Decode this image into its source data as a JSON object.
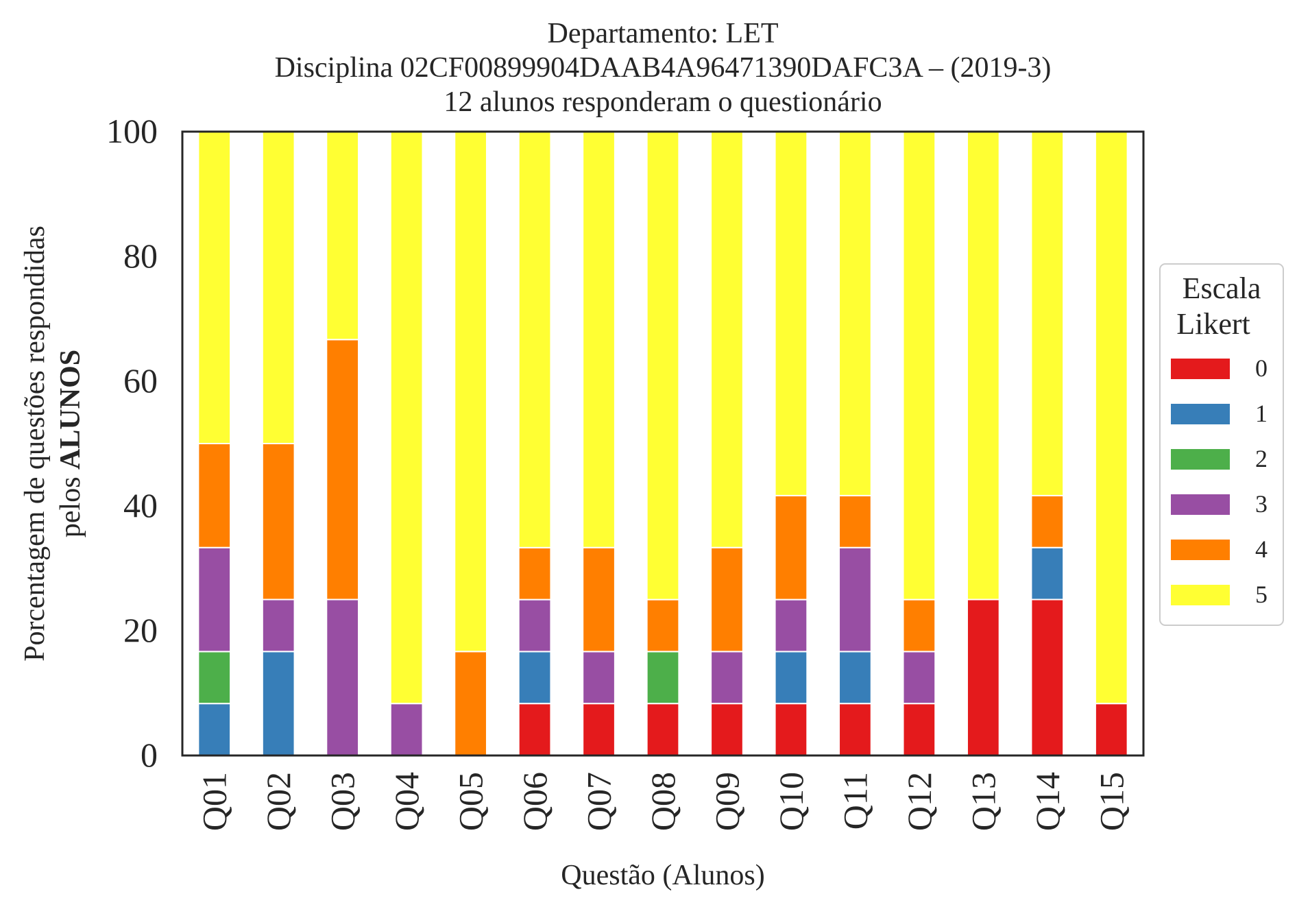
{
  "chart_data": {
    "type": "bar",
    "stacked": true,
    "title": [
      "Departamento: LET",
      "Disciplina 02CF00899904DAAB4A96471390DAFC3A – (2019-3)",
      "12 alunos responderam o questionário"
    ],
    "xlabel": "Questão (Alunos)",
    "ylabel": [
      "Porcentagem de questões respondidas",
      "pelos ",
      "ALUNOS"
    ],
    "ylim": [
      0,
      100
    ],
    "yticks": [
      0,
      20,
      40,
      60,
      80,
      100
    ],
    "categories": [
      "Q01",
      "Q02",
      "Q03",
      "Q04",
      "Q05",
      "Q06",
      "Q07",
      "Q08",
      "Q09",
      "Q10",
      "Q11",
      "Q12",
      "Q13",
      "Q14",
      "Q15"
    ],
    "legend": {
      "title": [
        "Escala",
        "Likert"
      ],
      "position": "center-right"
    },
    "series": [
      {
        "name": "0",
        "color": "#e41a1c",
        "values": [
          0,
          0,
          0,
          0,
          0,
          8.33,
          8.33,
          8.33,
          8.33,
          8.33,
          8.33,
          8.33,
          25,
          25,
          8.33
        ]
      },
      {
        "name": "1",
        "color": "#377eb8",
        "values": [
          8.33,
          16.67,
          0,
          0,
          0,
          8.33,
          0,
          0,
          0,
          8.33,
          8.33,
          0,
          0,
          8.33,
          0
        ]
      },
      {
        "name": "2",
        "color": "#4daf4a",
        "values": [
          8.33,
          0,
          0,
          0,
          0,
          0,
          0,
          8.33,
          0,
          0,
          0,
          0,
          0,
          0,
          0
        ]
      },
      {
        "name": "3",
        "color": "#984ea3",
        "values": [
          16.67,
          8.33,
          25,
          8.33,
          0,
          8.33,
          8.33,
          0,
          8.33,
          8.33,
          16.67,
          8.33,
          0,
          0,
          0
        ]
      },
      {
        "name": "4",
        "color": "#ff7f00",
        "values": [
          16.67,
          25,
          41.67,
          0,
          16.67,
          8.33,
          16.67,
          8.33,
          16.67,
          16.67,
          8.33,
          8.33,
          0,
          8.33,
          0
        ]
      },
      {
        "name": "5",
        "color": "#ffff33",
        "values": [
          50,
          50,
          33.33,
          91.67,
          83.33,
          66.67,
          66.67,
          75,
          66.67,
          58.33,
          58.33,
          75,
          75,
          58.33,
          91.67
        ]
      }
    ],
    "grid": false
  }
}
